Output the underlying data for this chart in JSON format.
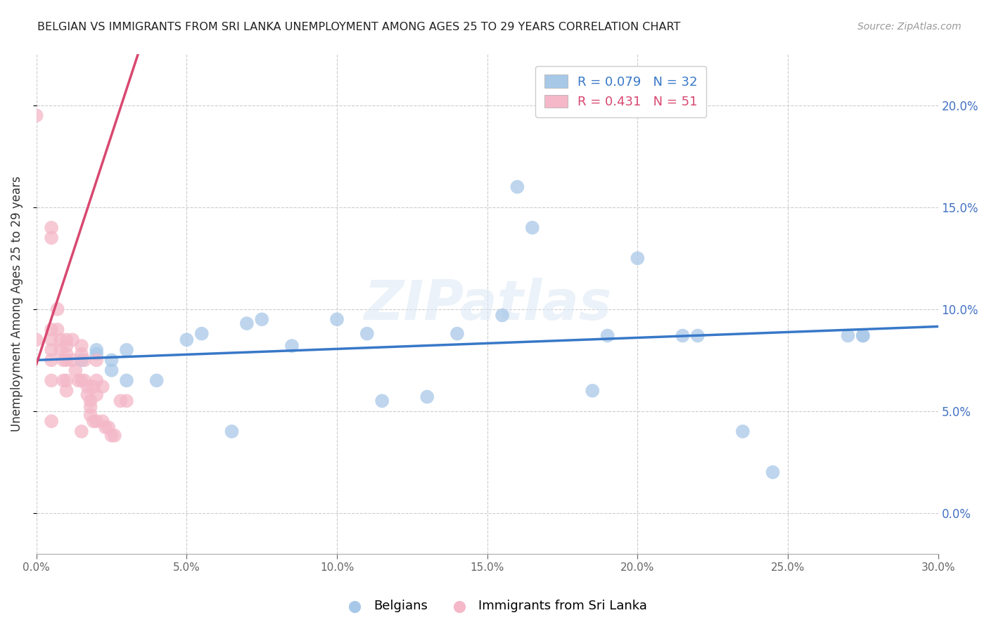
{
  "title": "BELGIAN VS IMMIGRANTS FROM SRI LANKA UNEMPLOYMENT AMONG AGES 25 TO 29 YEARS CORRELATION CHART",
  "source": "Source: ZipAtlas.com",
  "ylabel": "Unemployment Among Ages 25 to 29 years",
  "xlim": [
    0.0,
    0.3
  ],
  "ylim": [
    -0.02,
    0.225
  ],
  "yticks": [
    0.0,
    0.05,
    0.1,
    0.15,
    0.2
  ],
  "xticks": [
    0.0,
    0.05,
    0.1,
    0.15,
    0.2,
    0.25,
    0.3
  ],
  "blue_color": "#a8c8e8",
  "pink_color": "#f4b8c8",
  "blue_line_color": "#3878c8",
  "pink_line_color": "#d84870",
  "blue_R": "0.079",
  "blue_N": "32",
  "pink_R": "0.431",
  "pink_N": "51",
  "blue_label": "Belgians",
  "pink_label": "Immigrants from Sri Lanka",
  "watermark": "ZIPatlas",
  "blue_scatter_x": [
    0.015,
    0.02,
    0.02,
    0.025,
    0.025,
    0.03,
    0.03,
    0.04,
    0.05,
    0.055,
    0.065,
    0.07,
    0.075,
    0.085,
    0.1,
    0.11,
    0.115,
    0.13,
    0.14,
    0.155,
    0.16,
    0.165,
    0.185,
    0.19,
    0.2,
    0.215,
    0.22,
    0.235,
    0.245,
    0.27,
    0.275,
    0.275
  ],
  "blue_scatter_y": [
    0.075,
    0.08,
    0.078,
    0.075,
    0.07,
    0.08,
    0.065,
    0.065,
    0.085,
    0.088,
    0.04,
    0.093,
    0.095,
    0.082,
    0.095,
    0.088,
    0.055,
    0.057,
    0.088,
    0.097,
    0.16,
    0.14,
    0.06,
    0.087,
    0.125,
    0.087,
    0.087,
    0.04,
    0.02,
    0.087,
    0.087,
    0.087
  ],
  "pink_scatter_x": [
    0.0,
    0.0,
    0.005,
    0.005,
    0.005,
    0.005,
    0.005,
    0.005,
    0.005,
    0.005,
    0.007,
    0.007,
    0.008,
    0.008,
    0.009,
    0.009,
    0.01,
    0.01,
    0.01,
    0.01,
    0.01,
    0.01,
    0.012,
    0.012,
    0.013,
    0.014,
    0.015,
    0.015,
    0.015,
    0.015,
    0.016,
    0.016,
    0.017,
    0.017,
    0.018,
    0.018,
    0.018,
    0.019,
    0.019,
    0.02,
    0.02,
    0.02,
    0.02,
    0.022,
    0.022,
    0.023,
    0.024,
    0.025,
    0.026,
    0.028,
    0.03
  ],
  "pink_scatter_y": [
    0.195,
    0.085,
    0.14,
    0.135,
    0.09,
    0.085,
    0.08,
    0.075,
    0.065,
    0.045,
    0.1,
    0.09,
    0.085,
    0.08,
    0.075,
    0.065,
    0.085,
    0.082,
    0.078,
    0.075,
    0.065,
    0.06,
    0.085,
    0.075,
    0.07,
    0.065,
    0.082,
    0.078,
    0.065,
    0.04,
    0.075,
    0.065,
    0.062,
    0.058,
    0.055,
    0.052,
    0.048,
    0.062,
    0.045,
    0.075,
    0.065,
    0.058,
    0.045,
    0.062,
    0.045,
    0.042,
    0.042,
    0.038,
    0.038,
    0.055,
    0.055
  ],
  "pink_trend_x0": 0.0,
  "pink_trend_y0": 0.073,
  "pink_trend_slope": 4.5,
  "blue_trend_x0": 0.0,
  "blue_trend_y0": 0.075,
  "blue_trend_slope": 0.055
}
